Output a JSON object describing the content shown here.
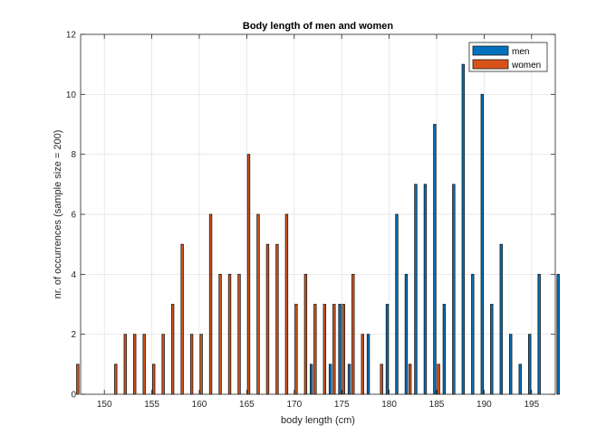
{
  "chart_data": {
    "type": "bar",
    "title": "Body length of men and women",
    "xlabel": "body length (cm)",
    "ylabel": "nr. of occurrences (sample size = 200)",
    "xlim": [
      147.5,
      197.5
    ],
    "ylim": [
      0,
      12
    ],
    "xticks": [
      150,
      155,
      160,
      165,
      170,
      175,
      180,
      185,
      190,
      195
    ],
    "yticks": [
      0,
      2,
      4,
      6,
      8,
      10,
      12
    ],
    "grid": true,
    "legend_position": "top-right",
    "series": [
      {
        "name": "men",
        "color": "#0072BD",
        "x": [
          171,
          173,
          174,
          175,
          177,
          179,
          180,
          181,
          182,
          183,
          184,
          185,
          186,
          187,
          188,
          189,
          190,
          191,
          192,
          193,
          194,
          195,
          197
        ],
        "values": [
          1,
          1,
          3,
          1,
          2,
          3,
          6,
          4,
          7,
          7,
          9,
          3,
          7,
          11,
          4,
          10,
          3,
          5,
          2,
          1,
          2,
          4,
          4
        ]
      },
      {
        "name": "women",
        "color": "#D95319",
        "x": [
          148,
          152,
          153,
          154,
          155,
          156,
          157,
          158,
          159,
          160,
          161,
          162,
          163,
          164,
          165,
          166,
          167,
          168,
          169,
          170,
          171,
          172,
          173,
          174,
          175,
          176,
          177,
          178,
          180,
          183,
          186
        ],
        "values": [
          1,
          1,
          2,
          2,
          2,
          1,
          2,
          3,
          5,
          2,
          2,
          6,
          4,
          4,
          4,
          8,
          6,
          5,
          5,
          6,
          3,
          4,
          3,
          3,
          3,
          3,
          4,
          2,
          1,
          1,
          1
        ]
      }
    ]
  }
}
